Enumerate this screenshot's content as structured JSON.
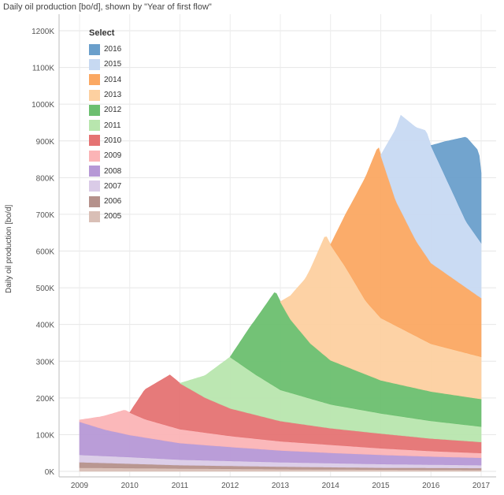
{
  "title": "Daily oil production [bo/d], shown by \"Year of first flow\"",
  "chart_data": {
    "type": "area",
    "stacked": true,
    "title": "Daily oil production [bo/d], shown by \"Year of first flow\"",
    "xlabel": "",
    "ylabel": "Daily oil production [bo/d]",
    "x_ticks": [
      "2009",
      "2010",
      "2011",
      "2012",
      "2013",
      "2014",
      "2015",
      "2016",
      "2017"
    ],
    "y_ticks": [
      "0K",
      "100K",
      "200K",
      "300K",
      "400K",
      "500K",
      "600K",
      "700K",
      "800K",
      "900K",
      "1000K",
      "1100K",
      "1200K"
    ],
    "xlim": [
      2009,
      2017
    ],
    "ylim": [
      0,
      1250000
    ],
    "grid": true,
    "legend": {
      "title": "Select",
      "placement": "top-left"
    },
    "series": [
      {
        "name": "2005",
        "color": "#d9bfb6",
        "points": [
          [
            2009.0,
            10000
          ],
          [
            2011.0,
            8000
          ],
          [
            2013.0,
            6000
          ],
          [
            2015.0,
            5000
          ],
          [
            2017.0,
            4000
          ]
        ]
      },
      {
        "name": "2006",
        "color": "#b5918b",
        "points": [
          [
            2009.0,
            15000
          ],
          [
            2010.0,
            12000
          ],
          [
            2011.0,
            9000
          ],
          [
            2013.0,
            7000
          ],
          [
            2015.0,
            5000
          ],
          [
            2017.0,
            5000
          ]
        ]
      },
      {
        "name": "2007",
        "color": "#dacbe7",
        "points": [
          [
            2009.0,
            20000
          ],
          [
            2010.0,
            18000
          ],
          [
            2011.0,
            15000
          ],
          [
            2013.0,
            12000
          ],
          [
            2015.0,
            10000
          ],
          [
            2017.0,
            8000
          ]
        ]
      },
      {
        "name": "2008",
        "color": "#b698d6",
        "points": [
          [
            2009.0,
            90000
          ],
          [
            2009.5,
            72000
          ],
          [
            2010.0,
            60000
          ],
          [
            2011.0,
            45000
          ],
          [
            2012.0,
            38000
          ],
          [
            2013.0,
            32000
          ],
          [
            2014.0,
            28000
          ],
          [
            2015.0,
            25000
          ],
          [
            2016.0,
            22000
          ],
          [
            2017.0,
            20000
          ]
        ]
      },
      {
        "name": "2009",
        "color": "#fbb4b6",
        "points": [
          [
            2009.0,
            5000
          ],
          [
            2009.4,
            30000
          ],
          [
            2009.9,
            65000
          ],
          [
            2010.3,
            50000
          ],
          [
            2011.0,
            38000
          ],
          [
            2012.0,
            30000
          ],
          [
            2013.0,
            25000
          ],
          [
            2014.0,
            22000
          ],
          [
            2015.0,
            18000
          ],
          [
            2016.0,
            15000
          ],
          [
            2017.0,
            13000
          ]
        ]
      },
      {
        "name": "2010",
        "color": "#e57373",
        "points": [
          [
            2010.0,
            0
          ],
          [
            2010.3,
            80000
          ],
          [
            2010.8,
            140000
          ],
          [
            2011.0,
            125000
          ],
          [
            2011.5,
            95000
          ],
          [
            2012.0,
            75000
          ],
          [
            2013.0,
            55000
          ],
          [
            2014.0,
            45000
          ],
          [
            2015.0,
            40000
          ],
          [
            2016.0,
            34000
          ],
          [
            2017.0,
            30000
          ]
        ]
      },
      {
        "name": "2011",
        "color": "#b8e6ae",
        "points": [
          [
            2011.0,
            0
          ],
          [
            2011.5,
            60000
          ],
          [
            2012.0,
            140000
          ],
          [
            2012.5,
            110000
          ],
          [
            2013.0,
            85000
          ],
          [
            2014.0,
            65000
          ],
          [
            2015.0,
            55000
          ],
          [
            2016.0,
            48000
          ],
          [
            2017.0,
            42000
          ]
        ]
      },
      {
        "name": "2012",
        "color": "#6cbf6f",
        "points": [
          [
            2012.0,
            0
          ],
          [
            2012.4,
            120000
          ],
          [
            2012.9,
            260000
          ],
          [
            2013.2,
            200000
          ],
          [
            2013.6,
            150000
          ],
          [
            2014.0,
            120000
          ],
          [
            2015.0,
            90000
          ],
          [
            2016.0,
            80000
          ],
          [
            2017.0,
            75000
          ]
        ]
      },
      {
        "name": "2013",
        "color": "#fdd0a0",
        "points": [
          [
            2013.0,
            0
          ],
          [
            2013.5,
            160000
          ],
          [
            2013.9,
            330000
          ],
          [
            2014.3,
            270000
          ],
          [
            2014.7,
            200000
          ],
          [
            2015.0,
            170000
          ],
          [
            2016.0,
            130000
          ],
          [
            2017.0,
            115000
          ]
        ]
      },
      {
        "name": "2014",
        "color": "#fba862",
        "points": [
          [
            2014.0,
            0
          ],
          [
            2014.5,
            240000
          ],
          [
            2014.95,
            460000
          ],
          [
            2015.3,
            340000
          ],
          [
            2015.7,
            260000
          ],
          [
            2016.0,
            220000
          ],
          [
            2016.5,
            190000
          ],
          [
            2017.0,
            160000
          ]
        ]
      },
      {
        "name": "2015",
        "color": "#c7d9f2",
        "points": [
          [
            2015.0,
            0
          ],
          [
            2015.4,
            260000
          ],
          [
            2015.9,
            340000
          ],
          [
            2016.3,
            260000
          ],
          [
            2016.7,
            180000
          ],
          [
            2017.0,
            150000
          ]
        ]
      },
      {
        "name": "2016",
        "color": "#6a9fcb",
        "points": [
          [
            2016.0,
            0
          ],
          [
            2016.3,
            100000
          ],
          [
            2016.7,
            230000
          ],
          [
            2016.95,
            240000
          ],
          [
            2017.0,
            190000
          ]
        ]
      }
    ]
  }
}
